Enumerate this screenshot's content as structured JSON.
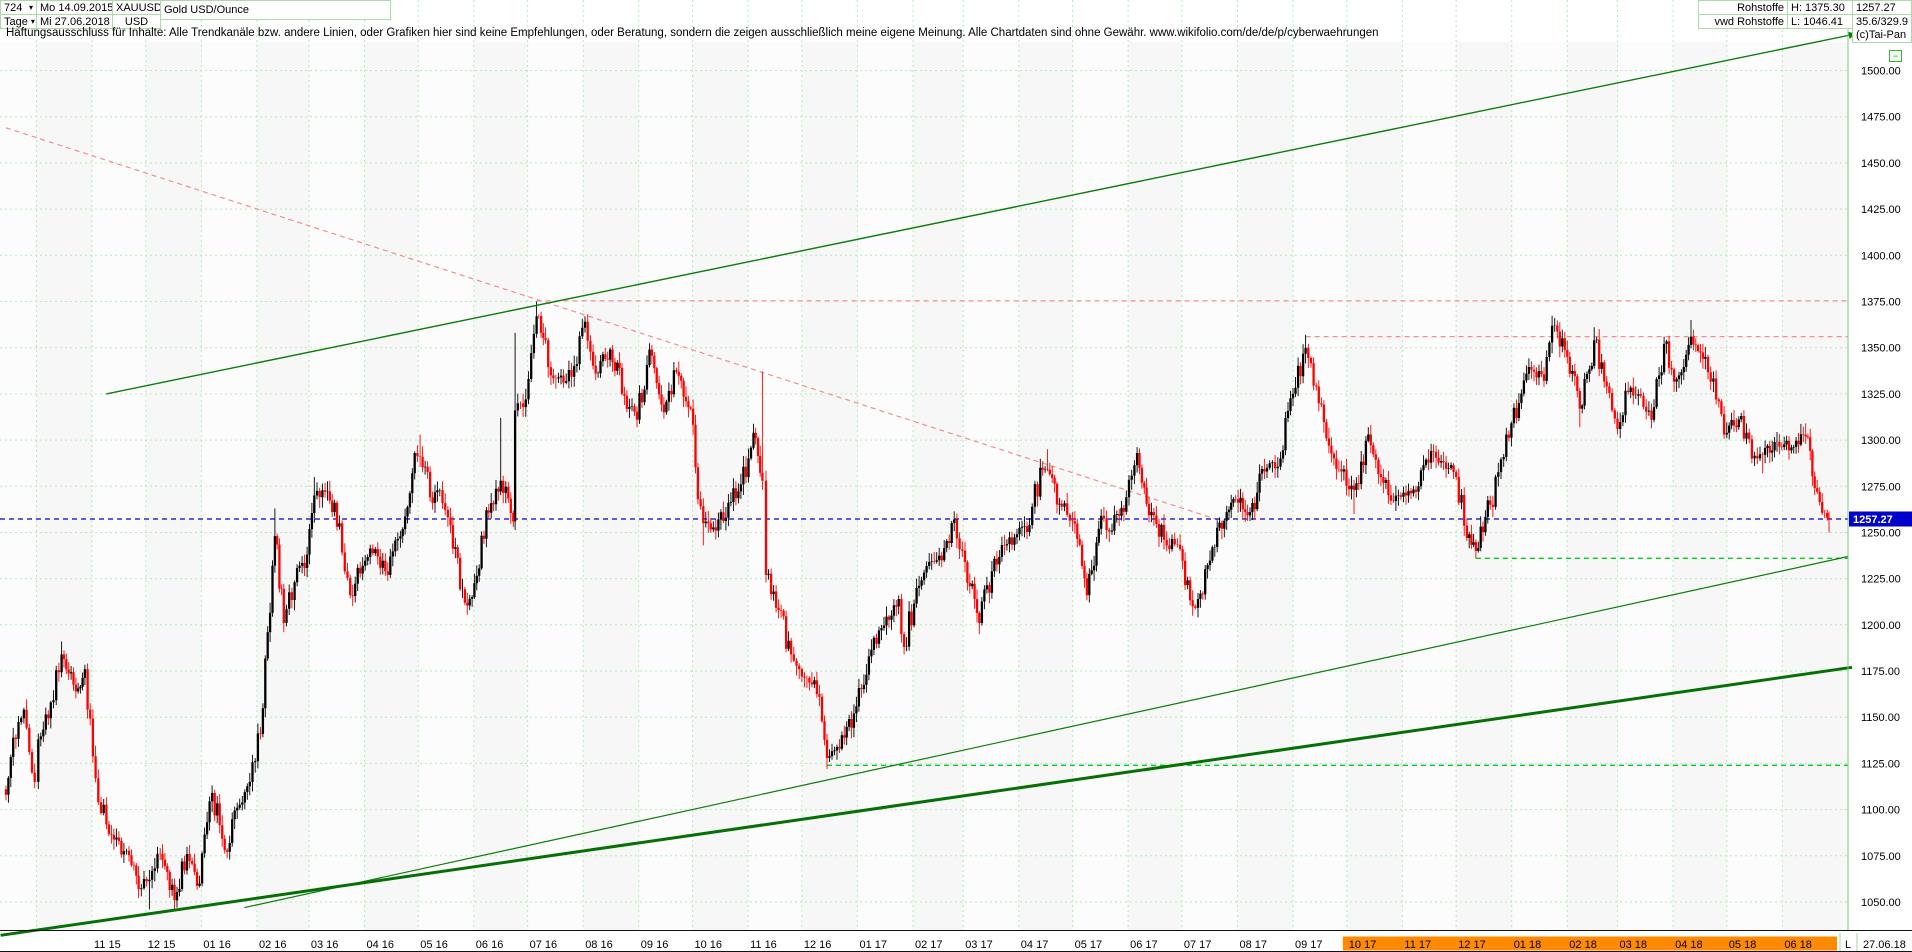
{
  "icons": {
    "dropdown": "▾",
    "minimize": "−"
  },
  "header": {
    "left": {
      "bars_count": "724",
      "period": "Tage",
      "date_start": "Mo 14.09.2015",
      "date_end": "Mi 27.06.2018",
      "symbol": "XAUUSD",
      "currency": "USD",
      "instrument": "Gold USD/Ounce"
    },
    "right": {
      "category": "Rohstoffe",
      "feed": "vwd Rohstoffe",
      "high": "H: 1375.30",
      "low": "L: 1046.41",
      "last": "1257.27",
      "stat": "35.6/329.9",
      "copyright": "(c)Tai-Pan"
    }
  },
  "disclaimer": {
    "text": "Haftungsausschluss für Inhalte: Alle Trendkanäle bzw. andere Linien, oder Grafiken hier sind keine Empfehlungen, oder Beratung, sondern die zeigen ausschließlich meine eigene Meinung. Alle Chartdaten sind ohne Gewähr.  www.wikifolio.com/de/de/p/cyberwaehrungen"
  },
  "axis": {
    "last_marker": "L",
    "last_date": "27.06.18",
    "last_price": "1257.27"
  },
  "chart_data": {
    "type": "candlestick",
    "title": "Gold USD/Ounce",
    "symbol": "XAUUSD",
    "period": "Tage",
    "bars_total": 724,
    "date_range": [
      "2015-09-14",
      "2018-06-27"
    ],
    "high_low": {
      "high": 1375.3,
      "low": 1046.41,
      "last": 1257.27
    },
    "y_axis": {
      "min": 1050,
      "max": 1500,
      "step": 25
    },
    "price_ticks": [
      "1500.00",
      "1475.00",
      "1450.00",
      "1425.00",
      "1400.00",
      "1375.00",
      "1350.00",
      "1325.00",
      "1300.00",
      "1275.00",
      "1250.00",
      "1225.00",
      "1200.00",
      "1175.00",
      "1150.00",
      "1125.00",
      "1100.00",
      "1075.00",
      "1050.00"
    ],
    "x_labels": [
      "11 15",
      "12 15",
      "01 16",
      "02 16",
      "03 16",
      "04 16",
      "05 16",
      "06 16",
      "07 16",
      "08 16",
      "09 16",
      "10 16",
      "11 16",
      "12 16",
      "01 17",
      "02 17",
      "03 17",
      "04 17",
      "05 17",
      "06 17",
      "07 17",
      "08 17",
      "09 17",
      "10 17",
      "11 17",
      "12 17",
      "01 18",
      "02 18",
      "03 18",
      "04 18",
      "05 18",
      "06 18"
    ],
    "x_highlight_from_label": "10 17",
    "highlight_color": "#ff8a00",
    "colors": {
      "up": "#000000",
      "down": "#ff0000",
      "grid": "#b5ecb5",
      "trend_green": "#0b7d0b",
      "trend_green_thick": "#067006",
      "resistance_pink": "#f28e8e",
      "support_green": "#00cc22",
      "last_blue": "#0000cc"
    },
    "anchors_note": "weekly close anchors read from chart; optional 3rd=high, 4th=low of that period",
    "anchors": [
      [
        "2015-09-14",
        1108
      ],
      [
        "2015-09-18",
        1139
      ],
      [
        "2015-09-24",
        1154
      ],
      [
        "2015-09-30",
        1115
      ],
      [
        "2015-10-02",
        1138
      ],
      [
        "2015-10-09",
        1158
      ],
      [
        "2015-10-15",
        1184,
        1191
      ],
      [
        "2015-10-23",
        1164
      ],
      [
        "2015-10-28",
        1176
      ],
      [
        "2015-11-03",
        1117
      ],
      [
        "2015-11-09",
        1092
      ],
      [
        "2015-11-16",
        1083
      ],
      [
        "2015-11-23",
        1070
      ],
      [
        "2015-11-27",
        1057
      ],
      [
        "2015-12-03",
        1062,
        null,
        1046
      ],
      [
        "2015-12-09",
        1076
      ],
      [
        "2015-12-17",
        1051,
        null,
        1047
      ],
      [
        "2015-12-24",
        1076
      ],
      [
        "2015-12-31",
        1060
      ],
      [
        "2016-01-07",
        1109
      ],
      [
        "2016-01-14",
        1078
      ],
      [
        "2016-01-21",
        1101
      ],
      [
        "2016-01-28",
        1115
      ],
      [
        "2016-02-03",
        1141
      ],
      [
        "2016-02-11",
        1248,
        1263
      ],
      [
        "2016-02-16",
        1201
      ],
      [
        "2016-02-22",
        1223
      ],
      [
        "2016-02-29",
        1238
      ],
      [
        "2016-03-04",
        1270,
        1280
      ],
      [
        "2016-03-10",
        1272
      ],
      [
        "2016-03-18",
        1255
      ],
      [
        "2016-03-24",
        1216
      ],
      [
        "2016-03-31",
        1232
      ],
      [
        "2016-04-07",
        1241
      ],
      [
        "2016-04-14",
        1227
      ],
      [
        "2016-04-21",
        1248
      ],
      [
        "2016-04-29",
        1293
      ],
      [
        "2016-05-02",
        1291,
        1303
      ],
      [
        "2016-05-09",
        1266
      ],
      [
        "2016-05-13",
        1273
      ],
      [
        "2016-05-19",
        1254
      ],
      [
        "2016-05-27",
        1212
      ],
      [
        "2016-05-31",
        1215
      ],
      [
        "2016-06-08",
        1262
      ],
      [
        "2016-06-16",
        1278,
        1312
      ],
      [
        "2016-06-23",
        1256
      ],
      [
        "2016-06-24",
        1316,
        1358
      ],
      [
        "2016-06-30",
        1322
      ],
      [
        "2016-07-06",
        1367,
        1375
      ],
      [
        "2016-07-11",
        1354
      ],
      [
        "2016-07-14",
        1335
      ],
      [
        "2016-07-21",
        1331
      ],
      [
        "2016-07-27",
        1340
      ],
      [
        "2016-08-02",
        1364
      ],
      [
        "2016-08-08",
        1336
      ],
      [
        "2016-08-16",
        1349
      ],
      [
        "2016-08-24",
        1324
      ],
      [
        "2016-08-31",
        1311
      ],
      [
        "2016-09-07",
        1349
      ],
      [
        "2016-09-15",
        1315
      ],
      [
        "2016-09-22",
        1337
      ],
      [
        "2016-09-30",
        1317
      ],
      [
        "2016-10-04",
        1268
      ],
      [
        "2016-10-07",
        1255,
        null,
        1243
      ],
      [
        "2016-10-14",
        1251
      ],
      [
        "2016-10-21",
        1266
      ],
      [
        "2016-10-28",
        1276
      ],
      [
        "2016-11-04",
        1304
      ],
      [
        "2016-11-09",
        1278,
        1337
      ],
      [
        "2016-11-11",
        1227
      ],
      [
        "2016-11-18",
        1208
      ],
      [
        "2016-11-25",
        1184
      ],
      [
        "2016-12-01",
        1172
      ],
      [
        "2016-12-08",
        1170
      ],
      [
        "2016-12-15",
        1128,
        null,
        1122
      ],
      [
        "2016-12-22",
        1133
      ],
      [
        "2016-12-30",
        1152
      ],
      [
        "2017-01-06",
        1173
      ],
      [
        "2017-01-13",
        1197
      ],
      [
        "2017-01-20",
        1205
      ],
      [
        "2017-01-24",
        1214
      ],
      [
        "2017-01-27",
        1188
      ],
      [
        "2017-02-03",
        1220
      ],
      [
        "2017-02-10",
        1234
      ],
      [
        "2017-02-17",
        1235
      ],
      [
        "2017-02-24",
        1257
      ],
      [
        "2017-03-02",
        1234
      ],
      [
        "2017-03-10",
        1201,
        null,
        1195
      ],
      [
        "2017-03-17",
        1229
      ],
      [
        "2017-03-24",
        1243
      ],
      [
        "2017-03-31",
        1249
      ],
      [
        "2017-04-07",
        1254
      ],
      [
        "2017-04-13",
        1285
      ],
      [
        "2017-04-17",
        1284,
        1295
      ],
      [
        "2017-04-25",
        1264
      ],
      [
        "2017-05-01",
        1256
      ],
      [
        "2017-05-09",
        1216,
        null,
        1214
      ],
      [
        "2017-05-17",
        1259
      ],
      [
        "2017-05-23",
        1251
      ],
      [
        "2017-05-31",
        1269
      ],
      [
        "2017-06-06",
        1293,
        1296
      ],
      [
        "2017-06-14",
        1261
      ],
      [
        "2017-06-21",
        1246
      ],
      [
        "2017-06-30",
        1241
      ],
      [
        "2017-07-07",
        1210
      ],
      [
        "2017-07-10",
        1214,
        null,
        1204
      ],
      [
        "2017-07-18",
        1242
      ],
      [
        "2017-07-26",
        1261
      ],
      [
        "2017-07-31",
        1268
      ],
      [
        "2017-08-08",
        1261
      ],
      [
        "2017-08-16",
        1283
      ],
      [
        "2017-08-25",
        1290
      ],
      [
        "2017-09-01",
        1325
      ],
      [
        "2017-09-08",
        1350,
        1357
      ],
      [
        "2017-09-14",
        1329
      ],
      [
        "2017-09-21",
        1297
      ],
      [
        "2017-09-28",
        1283
      ],
      [
        "2017-10-05",
        1273,
        null,
        1260
      ],
      [
        "2017-10-13",
        1303
      ],
      [
        "2017-10-20",
        1280
      ],
      [
        "2017-10-27",
        1267
      ],
      [
        "2017-11-03",
        1270
      ],
      [
        "2017-11-10",
        1275
      ],
      [
        "2017-11-17",
        1294
      ],
      [
        "2017-11-24",
        1288
      ],
      [
        "2017-12-01",
        1280
      ],
      [
        "2017-12-07",
        1247
      ],
      [
        "2017-12-12",
        1240,
        null,
        1236
      ],
      [
        "2017-12-20",
        1265
      ],
      [
        "2017-12-29",
        1303
      ],
      [
        "2018-01-05",
        1320
      ],
      [
        "2018-01-12",
        1338
      ],
      [
        "2018-01-19",
        1332
      ],
      [
        "2018-01-25",
        1362,
        1366
      ],
      [
        "2018-02-01",
        1345
      ],
      [
        "2018-02-08",
        1317,
        null,
        1307
      ],
      [
        "2018-02-16",
        1354,
        1361
      ],
      [
        "2018-02-23",
        1329
      ],
      [
        "2018-03-01",
        1306,
        null,
        1303
      ],
      [
        "2018-03-07",
        1326
      ],
      [
        "2018-03-14",
        1324
      ],
      [
        "2018-03-20",
        1311
      ],
      [
        "2018-03-27",
        1352,
        1356
      ],
      [
        "2018-04-03",
        1333
      ],
      [
        "2018-04-11",
        1356,
        1365
      ],
      [
        "2018-04-19",
        1345
      ],
      [
        "2018-04-25",
        1322
      ],
      [
        "2018-05-01",
        1304
      ],
      [
        "2018-05-09",
        1313
      ],
      [
        "2018-05-15",
        1290
      ],
      [
        "2018-05-21",
        1292,
        null,
        1282
      ],
      [
        "2018-05-29",
        1299
      ],
      [
        "2018-06-06",
        1296
      ],
      [
        "2018-06-14",
        1302,
        1309
      ],
      [
        "2018-06-19",
        1274
      ],
      [
        "2018-06-26",
        1258
      ],
      [
        "2018-06-27",
        1257.27,
        null,
        1250
      ]
    ],
    "lines": [
      {
        "name": "upper-trend-channel",
        "kind": "trendline",
        "style": "solid",
        "width": 1.4,
        "color": "#0b7d0b",
        "arrow_end": true,
        "from": {
          "date": "2015-11-09",
          "price": 1325
        },
        "to": {
          "date": "2018-07-13",
          "price": 1520
        }
      },
      {
        "name": "downtrend-line",
        "kind": "trendline",
        "style": "dashed",
        "width": 1.2,
        "color": "#f28e8e",
        "from": {
          "date": "2015-09-14",
          "price": 1469
        },
        "to": {
          "date": "2017-07-24",
          "price": 1256
        }
      },
      {
        "name": "resistance-1375",
        "kind": "horizontal",
        "style": "dashed",
        "width": 1.2,
        "color": "#f28e8e",
        "price": 1375.3,
        "from_date": "2016-07-06",
        "to": "axis"
      },
      {
        "name": "resistance-1356",
        "kind": "horizontal",
        "style": "dashed",
        "width": 1.2,
        "color": "#f28e8e",
        "price": 1356,
        "from_date": "2017-09-08",
        "to": "axis"
      },
      {
        "name": "support-1236",
        "kind": "horizontal",
        "style": "dashed",
        "width": 1.3,
        "color": "#00cc22",
        "price": 1236,
        "from_date": "2017-12-12",
        "to": "axis"
      },
      {
        "name": "support-1124",
        "kind": "horizontal",
        "style": "dashed",
        "width": 1.3,
        "color": "#00cc22",
        "price": 1124,
        "from_date": "2016-12-15",
        "to": "axis"
      },
      {
        "name": "last-price-line",
        "kind": "horizontal",
        "style": "dashed",
        "width": 1.3,
        "color": "#0000cc",
        "price": 1257.27,
        "from_date": "start",
        "to": "axis"
      },
      {
        "name": "lower-trend-thin",
        "kind": "trendline",
        "style": "solid",
        "width": 1.2,
        "color": "#0b7d0b",
        "from": {
          "date": "2016-01-25",
          "price": 1047
        },
        "to": {
          "date": "axis",
          "price": 1237
        }
      },
      {
        "name": "lower-trend-thick",
        "kind": "trendline",
        "style": "solid",
        "width": 3,
        "color": "#067006",
        "from": {
          "date": "2015-09-11",
          "price": 1032
        },
        "to": {
          "date": "panel",
          "price": 1177
        }
      }
    ]
  }
}
